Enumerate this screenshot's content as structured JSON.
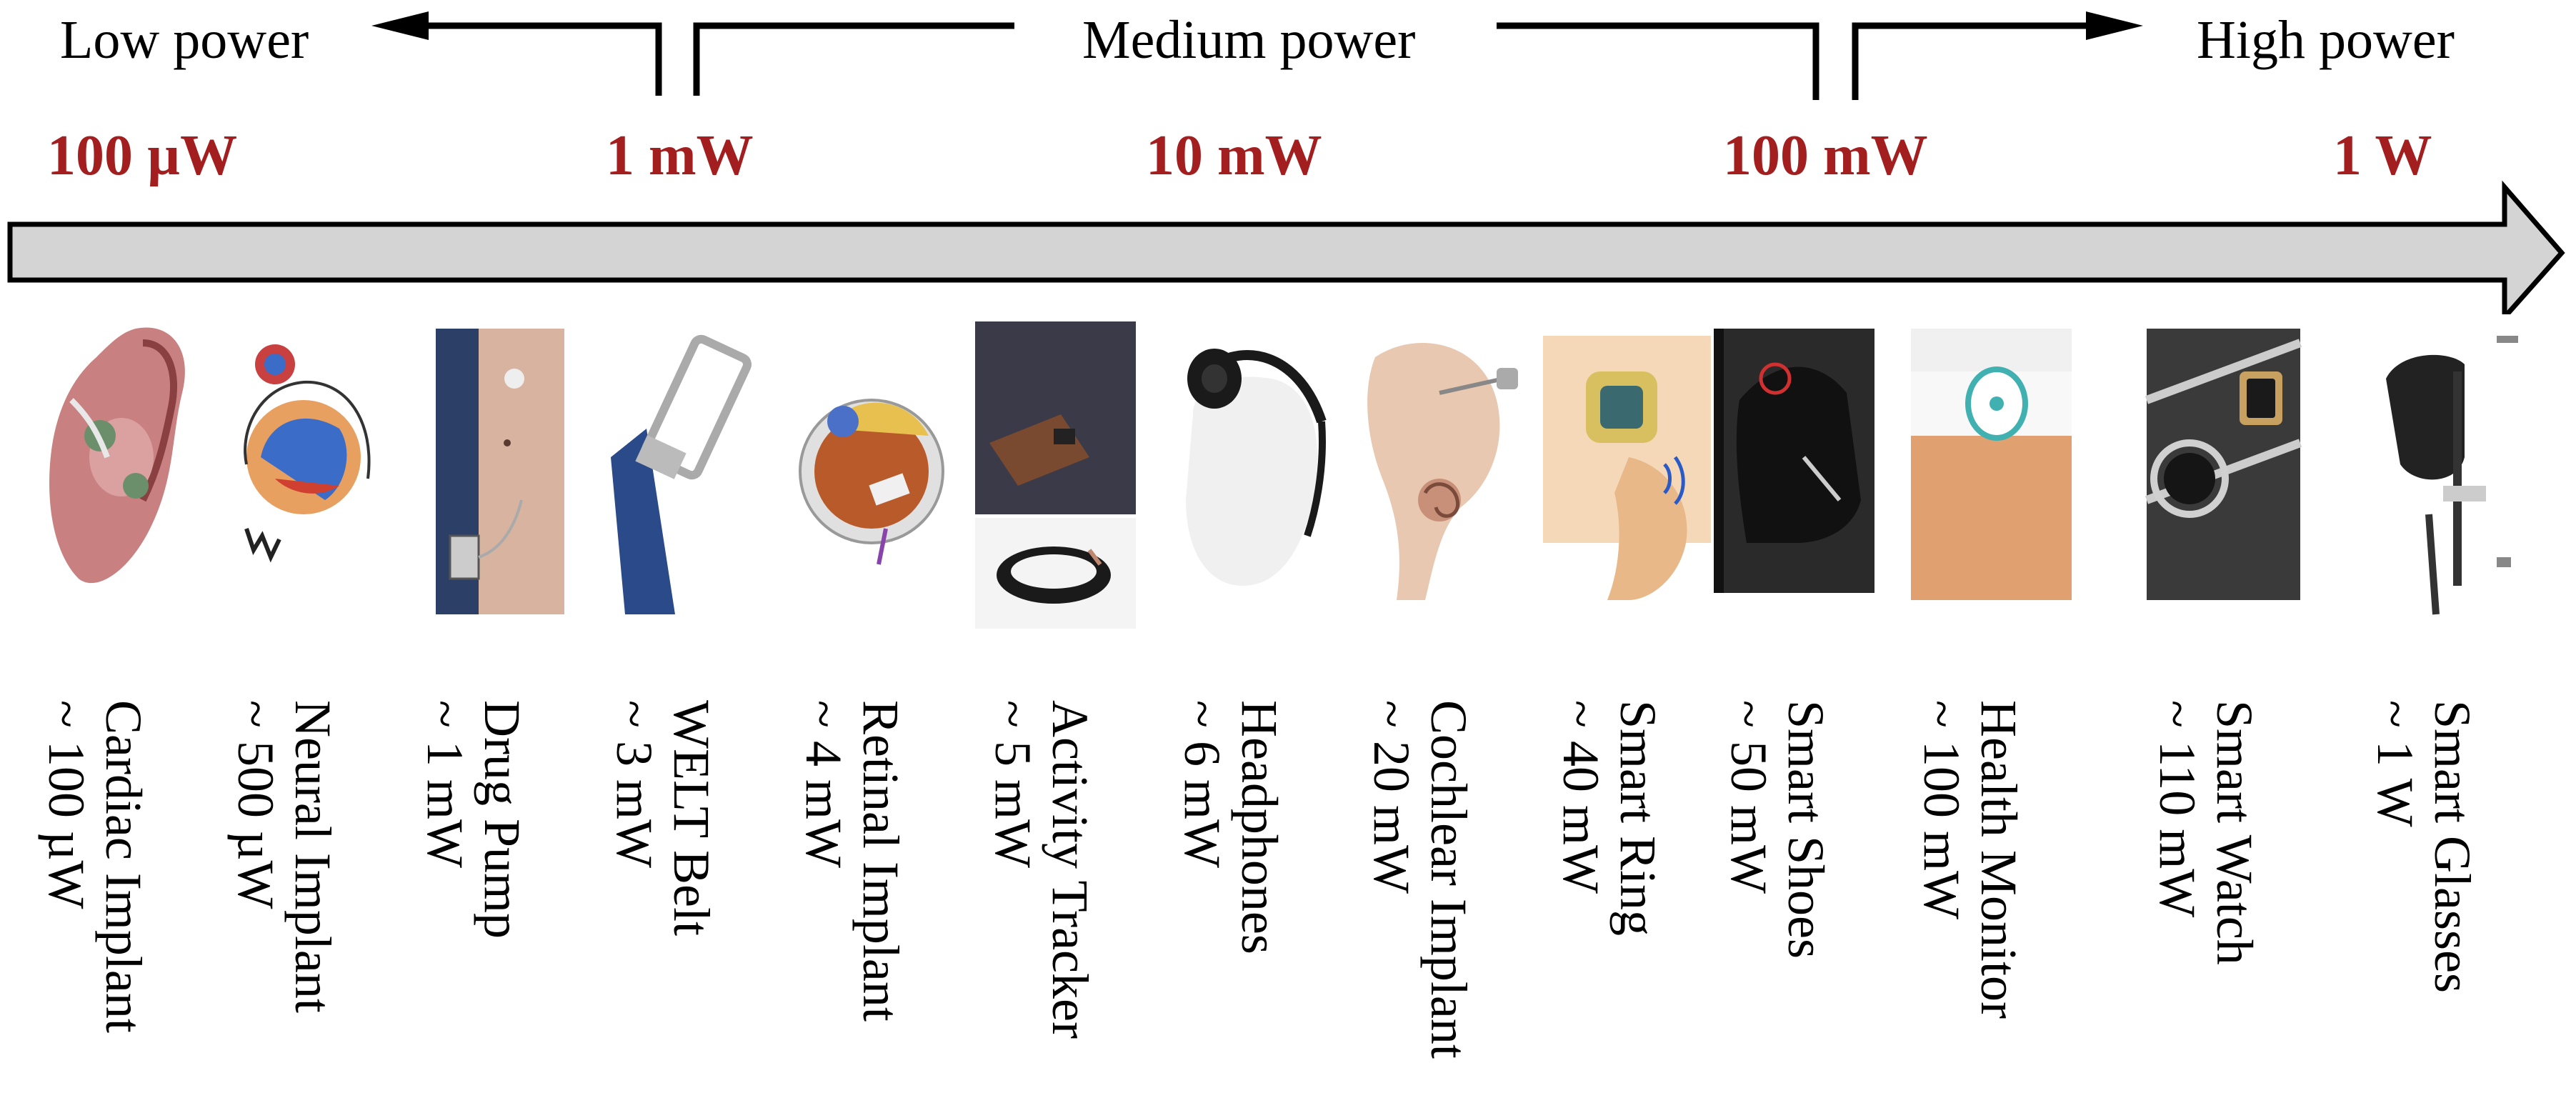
{
  "power_ranges": [
    {
      "label": "Low power"
    },
    {
      "label": "Medium power"
    },
    {
      "label": "High power"
    }
  ],
  "scale_labels": [
    "100 µW",
    "1 mW",
    "10 mW",
    "100 mW",
    "1 W"
  ],
  "scale_color": "#a31f1f",
  "arrow_fill": "#d4d4d4",
  "devices": [
    {
      "name": "Cardiac Implant",
      "power": "~ 100 µW",
      "icon": "heart-icon"
    },
    {
      "name": "Neural Implant",
      "power": "~ 500 µW",
      "icon": "brain-icon"
    },
    {
      "name": "Drug Pump",
      "power": "~ 1 mW",
      "icon": "drug-pump-icon"
    },
    {
      "name": "WELT Belt",
      "power": "~ 3 mW",
      "icon": "belt-icon"
    },
    {
      "name": "Retinal Implant",
      "power": "~ 4 mW",
      "icon": "eye-icon"
    },
    {
      "name": "Activity Tracker",
      "power": "~ 5 mW",
      "icon": "wristband-icon"
    },
    {
      "name": "Headphones",
      "power": "~ 6 mW",
      "icon": "headphones-icon"
    },
    {
      "name": "Cochlear Implant",
      "power": "~ 20 mW",
      "icon": "ear-icon"
    },
    {
      "name": "Smart Ring",
      "power": "~ 40 mW",
      "icon": "ring-icon"
    },
    {
      "name": "Smart Shoes",
      "power": "~ 50 mW",
      "icon": "shoe-icon"
    },
    {
      "name": "Health Monitor",
      "power": "~ 100 mW",
      "icon": "armband-icon"
    },
    {
      "name": "Smart Watch",
      "power": "~ 110 mW",
      "icon": "watch-icon"
    },
    {
      "name": "Smart Glasses",
      "power": "~ 1 W",
      "icon": "glasses-icon"
    }
  ]
}
